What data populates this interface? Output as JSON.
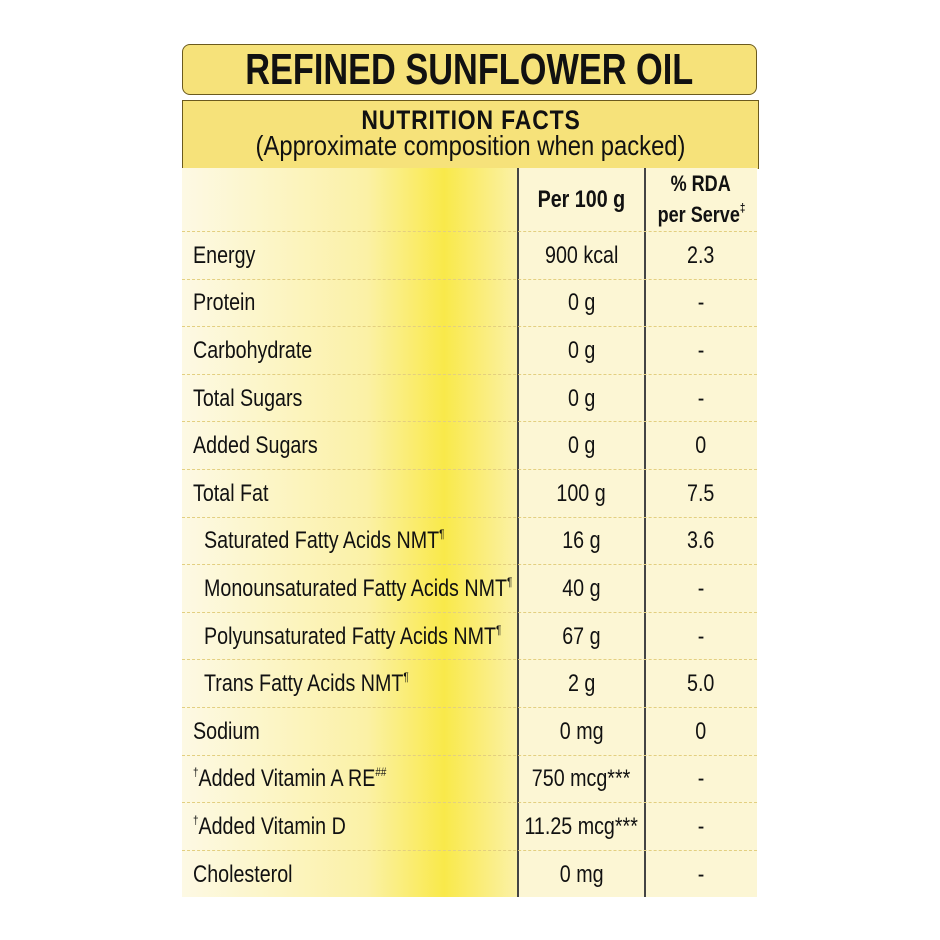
{
  "title": "REFINED SUNFLOWER OIL",
  "subtitle": "NUTRITION FACTS",
  "subtitle_note": "(Approximate composition when packed)",
  "columns": {
    "per100": "Per 100 g",
    "rda_line1": "% RDA",
    "rda_line2": "per Serve",
    "rda_mark": "‡"
  },
  "rows": [
    {
      "pre": "",
      "label": "Energy",
      "post": "",
      "value": "900 kcal",
      "rda": "2.3",
      "indent": false
    },
    {
      "pre": "",
      "label": "Protein",
      "post": "",
      "value": "0 g",
      "rda": "-",
      "indent": false
    },
    {
      "pre": "",
      "label": "Carbohydrate",
      "post": "",
      "value": "0 g",
      "rda": "-",
      "indent": false
    },
    {
      "pre": "",
      "label": "Total Sugars",
      "post": "",
      "value": "0 g",
      "rda": "-",
      "indent": false
    },
    {
      "pre": "",
      "label": "Added Sugars",
      "post": "",
      "value": "0 g",
      "rda": "0",
      "indent": false
    },
    {
      "pre": "",
      "label": "Total Fat",
      "post": "",
      "value": "100 g",
      "rda": "7.5",
      "indent": false
    },
    {
      "pre": "",
      "label": "Saturated Fatty Acids NMT",
      "post": "¶",
      "value": "16 g",
      "rda": "3.6",
      "indent": true
    },
    {
      "pre": "",
      "label": "Monounsaturated Fatty Acids NMT",
      "post": "¶",
      "value": "40 g",
      "rda": "-",
      "indent": true
    },
    {
      "pre": "",
      "label": "Polyunsaturated Fatty Acids NMT",
      "post": "¶",
      "value": "67 g",
      "rda": "-",
      "indent": true
    },
    {
      "pre": "",
      "label": "Trans Fatty Acids NMT",
      "post": "¶",
      "value": "2 g",
      "rda": "5.0",
      "indent": true
    },
    {
      "pre": "",
      "label": "Sodium",
      "post": "",
      "value": "0 mg",
      "rda": "0",
      "indent": false
    },
    {
      "pre": "†",
      "label": "Added Vitamin A RE",
      "post": "##",
      "value": "750 mcg***",
      "rda": "-",
      "indent": false
    },
    {
      "pre": "†",
      "label": "Added Vitamin D",
      "post": "",
      "value": "11.25 mcg***",
      "rda": "-",
      "indent": false
    },
    {
      "pre": "",
      "label": "Cholesterol",
      "post": "",
      "value": "0 mg",
      "rda": "-",
      "indent": false
    }
  ]
}
